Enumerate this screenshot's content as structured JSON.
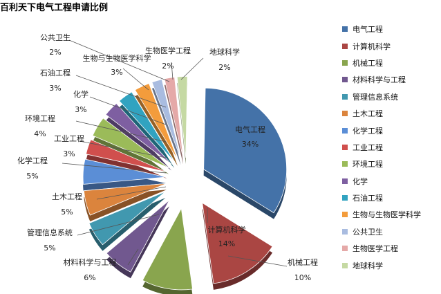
{
  "title": "百利天下电气工程申请比例",
  "chart_data": {
    "type": "pie",
    "title": "百利天下电气工程申请比例",
    "legend_position": "right",
    "categories": [
      "电气工程",
      "计算机科学",
      "机械工程",
      "材料科学与工程",
      "管理信息系统",
      "土木工程",
      "化学工程",
      "工业工程",
      "环境工程",
      "化学",
      "石油工程",
      "生物与生物医学科学",
      "公共卫生",
      "生物医学工程",
      "地球科学"
    ],
    "values": [
      34,
      14,
      10,
      6,
      5,
      5,
      5,
      3,
      4,
      3,
      3,
      3,
      2,
      2,
      2
    ],
    "value_labels": [
      "34%",
      "14%",
      "10%",
      "6%",
      "5%",
      "5%",
      "5%",
      "3%",
      "4%",
      "3%",
      "3%",
      "3%",
      "2%",
      "2%",
      "2%"
    ],
    "colors": [
      "#4472A8",
      "#AA4643",
      "#89A54E",
      "#71588F",
      "#4198AF",
      "#DB843D",
      "#5B8ED6",
      "#D04F4D",
      "#9BBB59",
      "#7E5FA1",
      "#31A3C0",
      "#F39C3C",
      "#A9BCE0",
      "#E5A9A8",
      "#C5D9A3"
    ]
  }
}
